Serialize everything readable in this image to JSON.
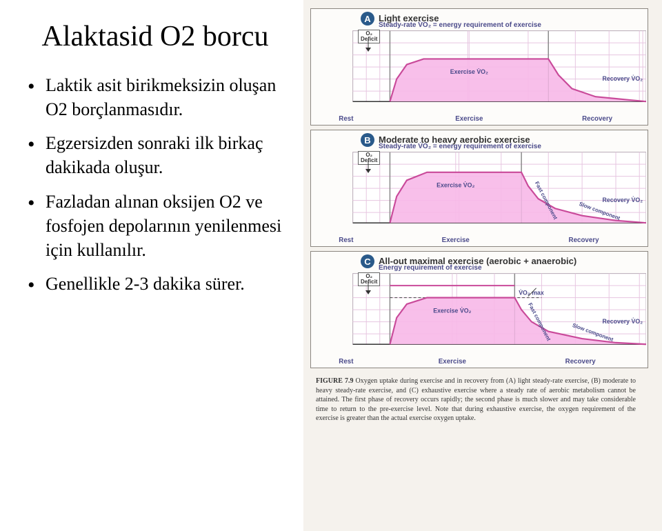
{
  "title": "Alaktasid O2 borcu",
  "bullets": [
    "Laktik asit birikmeksizin oluşan O2 borçlanmasıdır.",
    "Egzersizden sonraki ilk birkaç dakikada oluşur.",
    "Fazladan alınan oksijen O2  ve fosfojen depolarının yenilenmesi için kullanılır.",
    "Genellikle 2-3 dakika sürer."
  ],
  "charts": [
    {
      "badge": "A",
      "header": "Light exercise",
      "subheader": "Steady-rate V̇O₂ = energy requirement of exercise",
      "deficit": "O₂\nDeficit",
      "exercise_label": "Exercise V̇O₂",
      "recovery_label": "Recovery V̇O₂",
      "phases": [
        "Rest",
        "Exercise",
        "Recovery"
      ],
      "curve_color": "#f7b8e8",
      "border_color": "#c94a9a",
      "grid_color": "#e6c5e0",
      "phase_x": [
        0,
        60,
        115,
        350,
        495
      ],
      "steady_level": 0.35,
      "rest_level": 0.88,
      "rise_curve": [
        [
          115,
          0.88
        ],
        [
          125,
          0.6
        ],
        [
          140,
          0.42
        ],
        [
          165,
          0.35
        ]
      ],
      "decay_curve": [
        [
          350,
          0.35
        ],
        [
          365,
          0.55
        ],
        [
          385,
          0.72
        ],
        [
          420,
          0.82
        ],
        [
          470,
          0.86
        ],
        [
          495,
          0.88
        ]
      ]
    },
    {
      "badge": "B",
      "header": "Moderate to heavy aerobic exercise",
      "subheader": "Steady-rate V̇O₂ = energy requirement of exercise",
      "deficit": "O₂\nDeficit",
      "exercise_label": "Exercise V̇O₂",
      "recovery_label": "Recovery V̇O₂",
      "fast_label": "Fast component",
      "slow_label": "Slow component",
      "phases": [
        "Rest",
        "Exercise",
        "Recovery"
      ],
      "curve_color": "#f7b8e8",
      "border_color": "#c94a9a",
      "grid_color": "#e6c5e0",
      "phase_x": [
        0,
        60,
        115,
        310,
        495
      ],
      "steady_level": 0.25,
      "rest_level": 0.88,
      "rise_curve": [
        [
          115,
          0.88
        ],
        [
          125,
          0.55
        ],
        [
          140,
          0.35
        ],
        [
          170,
          0.25
        ]
      ],
      "decay_curve": [
        [
          310,
          0.25
        ],
        [
          320,
          0.42
        ],
        [
          335,
          0.58
        ],
        [
          360,
          0.7
        ],
        [
          400,
          0.79
        ],
        [
          450,
          0.85
        ],
        [
          495,
          0.88
        ]
      ]
    },
    {
      "badge": "C",
      "header": "All-out maximal exercise (aerobic + anaerobic)",
      "subheader": "Energy requirement of exercise",
      "deficit": "O₂\nDeficit",
      "exercise_label": "Exercise V̇O₂",
      "recovery_label": "Recovery V̇O₂",
      "fast_label": "Fast component",
      "slow_label": "Slow component",
      "vo2max_label": "V̇O₂ max",
      "phases": [
        "Rest",
        "Exercise",
        "Recovery"
      ],
      "curve_color": "#f7b8e8",
      "border_color": "#c94a9a",
      "grid_color": "#e6c5e0",
      "phase_x": [
        0,
        60,
        115,
        300,
        495
      ],
      "steady_level": 0.3,
      "energy_level": 0.15,
      "rest_level": 0.88,
      "rise_curve": [
        [
          115,
          0.88
        ],
        [
          125,
          0.55
        ],
        [
          140,
          0.38
        ],
        [
          170,
          0.3
        ]
      ],
      "decay_curve": [
        [
          300,
          0.3
        ],
        [
          310,
          0.45
        ],
        [
          325,
          0.6
        ],
        [
          350,
          0.72
        ],
        [
          400,
          0.81
        ],
        [
          450,
          0.86
        ],
        [
          495,
          0.88
        ]
      ]
    }
  ],
  "caption": {
    "label": "FIGURE 7.9",
    "text": "Oxygen uptake during exercise and in recovery from (A) light steady-rate exercise, (B) moderate to heavy steady-rate exercise, and (C) exhaustive exercise where a steady rate of aerobic metabolism cannot be attained. The first phase of recovery occurs rapidly; the second phase is much slower and may take considerable time to return to the pre-exercise level. Note that during exhaustive exercise, the oxygen requirement of the exercise is greater than the actual exercise oxygen uptake."
  },
  "colors": {
    "badge_bg": "#2a5a8a",
    "text_dark": "#333333",
    "accent": "#4a4a8a"
  }
}
